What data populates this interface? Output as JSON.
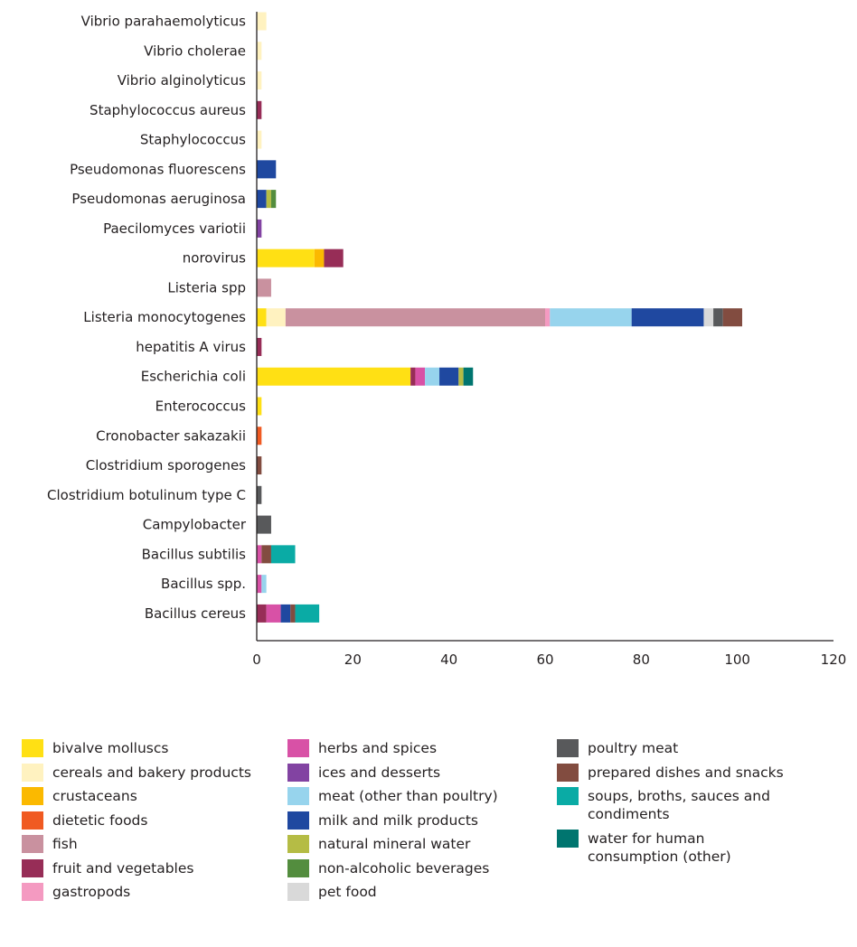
{
  "chart_data": {
    "type": "bar",
    "orientation": "horizontal",
    "stacked": true,
    "categories": [
      "Vibrio parahaemolyticus",
      "Vibrio cholerae",
      "Vibrio alginolyticus",
      "Staphylococcus aureus",
      "Staphylococcus",
      "Pseudomonas fluorescens",
      "Pseudomonas aeruginosa",
      "Paecilomyces variotii",
      "norovirus",
      "Listeria spp",
      "Listeria monocytogenes",
      "hepatitis A virus",
      "Escherichia coli",
      "Enterococcus",
      "Cronobacter sakazakii",
      "Clostridium sporogenes",
      "Clostridium botulinum type C",
      "Campylobacter",
      "Bacillus subtilis",
      "Bacillus spp.",
      "Bacillus cereus"
    ],
    "series": [
      {
        "name": "bivalve molluscs",
        "color": "#ffe014",
        "values": [
          0,
          0,
          0,
          0,
          0,
          0,
          0,
          0,
          12,
          0,
          2,
          0,
          32,
          1,
          0,
          0,
          0,
          0,
          0,
          0,
          0
        ]
      },
      {
        "name": "cereals and bakery products",
        "color": "#fff2c0",
        "values": [
          2,
          1,
          1,
          0,
          1,
          0,
          0,
          0,
          0,
          0,
          4,
          0,
          0,
          0,
          0,
          0,
          0,
          0,
          0,
          0,
          0
        ]
      },
      {
        "name": "crustaceans",
        "color": "#fbb900",
        "values": [
          0,
          0,
          0,
          0,
          0,
          0,
          0,
          0,
          2,
          0,
          0,
          0,
          0,
          0,
          0,
          0,
          0,
          0,
          0,
          0,
          0
        ]
      },
      {
        "name": "dietetic foods",
        "color": "#f05a22",
        "values": [
          0,
          0,
          0,
          0,
          0,
          0,
          0,
          0,
          0,
          0,
          0,
          0,
          0,
          0,
          1,
          0,
          0,
          0,
          0,
          0,
          0
        ]
      },
      {
        "name": "fish",
        "color": "#c9919f",
        "values": [
          0,
          0,
          0,
          0,
          0,
          0,
          0,
          0,
          0,
          3,
          54,
          0,
          0,
          0,
          0,
          0,
          0,
          0,
          0,
          0,
          0
        ]
      },
      {
        "name": "fruit and vegetables",
        "color": "#972d57",
        "values": [
          0,
          0,
          0,
          1,
          0,
          0,
          0,
          0,
          4,
          0,
          0,
          1,
          1,
          0,
          0,
          0,
          0,
          0,
          0,
          0,
          2
        ]
      },
      {
        "name": "gastropods",
        "color": "#f49ac1",
        "values": [
          0,
          0,
          0,
          0,
          0,
          0,
          0,
          0,
          0,
          0,
          1,
          0,
          0,
          0,
          0,
          0,
          0,
          0,
          0,
          0,
          0
        ]
      },
      {
        "name": "herbs and spices",
        "color": "#d851a6",
        "values": [
          0,
          0,
          0,
          0,
          0,
          0,
          0,
          0,
          0,
          0,
          0,
          0,
          2,
          0,
          0,
          0,
          0,
          0,
          1,
          1,
          3
        ]
      },
      {
        "name": "ices and desserts",
        "color": "#8243a2",
        "values": [
          0,
          0,
          0,
          0,
          0,
          0,
          0,
          1,
          0,
          0,
          0,
          0,
          0,
          0,
          0,
          0,
          0,
          0,
          0,
          0,
          0
        ]
      },
      {
        "name": "meat (other than poultry)",
        "color": "#97d4ed",
        "values": [
          0,
          0,
          0,
          0,
          0,
          0,
          0,
          0,
          0,
          0,
          17,
          0,
          3,
          0,
          0,
          0,
          0,
          0,
          0,
          1,
          0
        ]
      },
      {
        "name": "milk and milk products",
        "color": "#1f48a0",
        "values": [
          0,
          0,
          0,
          0,
          0,
          4,
          2,
          0,
          0,
          0,
          15,
          0,
          4,
          0,
          0,
          0,
          0,
          0,
          0,
          0,
          2
        ]
      },
      {
        "name": "natural mineral water",
        "color": "#b5bc45",
        "values": [
          0,
          0,
          0,
          0,
          0,
          0,
          1,
          0,
          0,
          0,
          0,
          0,
          1,
          0,
          0,
          0,
          0,
          0,
          0,
          0,
          0
        ]
      },
      {
        "name": "non-alcoholic beverages",
        "color": "#538d3e",
        "values": [
          0,
          0,
          0,
          0,
          0,
          0,
          1,
          0,
          0,
          0,
          0,
          0,
          0,
          0,
          0,
          0,
          0,
          0,
          0,
          0,
          0
        ]
      },
      {
        "name": "pet food",
        "color": "#d9d9d9",
        "values": [
          0,
          0,
          0,
          0,
          0,
          0,
          0,
          0,
          0,
          0,
          2,
          0,
          0,
          0,
          0,
          0,
          0,
          0,
          0,
          0,
          0
        ]
      },
      {
        "name": "poultry meat",
        "color": "#58595b",
        "values": [
          0,
          0,
          0,
          0,
          0,
          0,
          0,
          0,
          0,
          0,
          2,
          0,
          0,
          0,
          0,
          0,
          1,
          3,
          0,
          0,
          0
        ]
      },
      {
        "name": "prepared dishes and snacks",
        "color": "#824c40",
        "values": [
          0,
          0,
          0,
          0,
          0,
          0,
          0,
          0,
          0,
          0,
          4,
          0,
          0,
          0,
          0,
          1,
          0,
          0,
          2,
          0,
          1
        ]
      },
      {
        "name": "soups, broths, sauces and condiments",
        "color": "#0aaba5",
        "values": [
          0,
          0,
          0,
          0,
          0,
          0,
          0,
          0,
          0,
          0,
          0,
          0,
          0,
          0,
          0,
          0,
          0,
          0,
          5,
          0,
          5
        ]
      },
      {
        "name": "water for human consumption (other)",
        "color": "#00756f",
        "values": [
          0,
          0,
          0,
          0,
          0,
          0,
          0,
          0,
          0,
          0,
          0,
          0,
          2,
          0,
          0,
          0,
          0,
          0,
          0,
          0,
          0
        ]
      }
    ],
    "xlim": [
      0,
      120
    ],
    "xticks": [
      "0",
      "20",
      "40",
      "60",
      "80",
      "100",
      "120"
    ],
    "xlabel": "",
    "ylabel": "",
    "title": "",
    "grid": false,
    "legend_position": "bottom"
  }
}
